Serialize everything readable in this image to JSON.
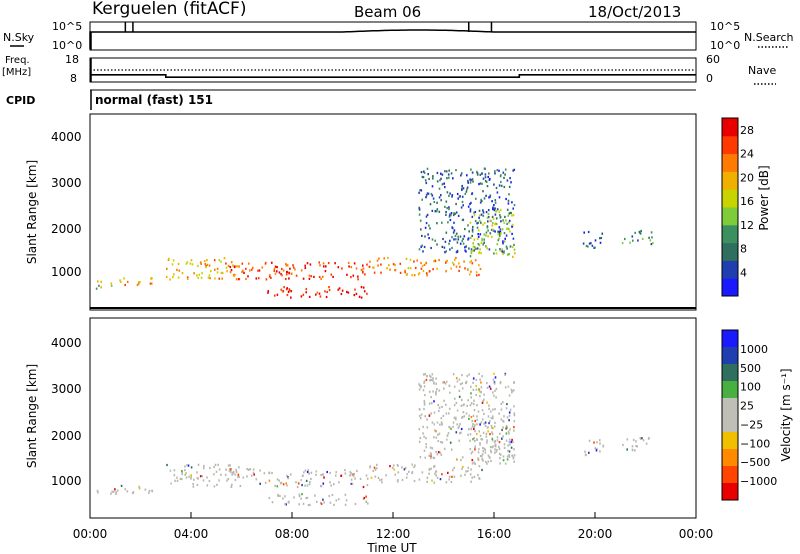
{
  "header": {
    "station": "Kerguelen (fitACF)",
    "beam": "Beam 06",
    "date": "18/Oct/2013"
  },
  "top_panels": {
    "nsky_label": "N.Sky",
    "nsky_ticks": [
      "10^5",
      "10^0"
    ],
    "nsearch_label": "N.Search",
    "nsearch_ticks": [
      "10^5",
      "10^0"
    ],
    "freq_label": "Freq.",
    "freq_unit": "[MHz]",
    "freq_ticks": [
      "18",
      "8"
    ],
    "nave_label": "Nave",
    "nave_ticks": [
      "60",
      "0"
    ],
    "cpid_label": "CPID",
    "cpid_value": "normal (fast) 151"
  },
  "colors": {
    "power_scale": [
      "#1a1aff",
      "#1f3fb0",
      "#2e6f5e",
      "#3c9060",
      "#7ecc3a",
      "#c8d400",
      "#f0b000",
      "#ff7a00",
      "#ff3a00",
      "#e80000"
    ],
    "velocity_scale": [
      "#1a1aff",
      "#1f3fb0",
      "#2e6f5e",
      "#48b040",
      "#bfbfb8",
      "#bfbfb8",
      "#f0c000",
      "#ff8a00",
      "#ff4500",
      "#e80000"
    ],
    "ground_scatter": "#b8b8b0"
  },
  "chart_data": [
    {
      "type": "heatmap",
      "title": "Power",
      "xlabel": "Time UT",
      "ylabel": "Slant Range [km]",
      "xlim_hours": [
        0,
        24
      ],
      "ylim_km": [
        200,
        4600
      ],
      "y_ticks": [
        "1000",
        "2000",
        "3000",
        "4000"
      ],
      "colorbar": {
        "label": "Power [dB]",
        "ticks": [
          "4",
          "8",
          "12",
          "16",
          "20",
          "24",
          "28"
        ],
        "range": [
          0,
          30
        ]
      },
      "echo_regions": [
        {
          "t0": 0.2,
          "t1": 1.0,
          "r0": 700,
          "r1": 900,
          "level": 16
        },
        {
          "t0": 1.0,
          "t1": 2.5,
          "r0": 750,
          "r1": 950,
          "level": 20
        },
        {
          "t0": 3.0,
          "t1": 6.0,
          "r0": 900,
          "r1": 1400,
          "level": 20
        },
        {
          "t0": 5.5,
          "t1": 11.0,
          "r0": 900,
          "r1": 1300,
          "level": 26
        },
        {
          "t0": 7.0,
          "t1": 11.0,
          "r0": 500,
          "r1": 750,
          "level": 28
        },
        {
          "t0": 11.0,
          "t1": 15.5,
          "r0": 1000,
          "r1": 1400,
          "level": 22
        },
        {
          "t0": 13.0,
          "t1": 16.8,
          "r0": 1500,
          "r1": 3400,
          "level": 6
        },
        {
          "t0": 15.0,
          "t1": 16.8,
          "r0": 1400,
          "r1": 2500,
          "level": 14
        },
        {
          "t0": 19.5,
          "t1": 20.3,
          "r0": 1600,
          "r1": 2000,
          "level": 6
        },
        {
          "t0": 21.0,
          "t1": 22.3,
          "r0": 1700,
          "r1": 2000,
          "level": 10
        }
      ]
    },
    {
      "type": "heatmap",
      "title": "Velocity",
      "xlabel": "Time UT",
      "ylabel": "Slant Range [km]",
      "xlim_hours": [
        0,
        24
      ],
      "ylim_km": [
        200,
        4600
      ],
      "x_ticks": [
        "00:00",
        "04:00",
        "08:00",
        "12:00",
        "16:00",
        "20:00",
        "00:00"
      ],
      "y_ticks": [
        "1000",
        "2000",
        "3000",
        "4000"
      ],
      "colorbar": {
        "label": "Velocity [m s⁻¹]",
        "ticks": [
          "1000",
          "500",
          "100",
          "25",
          "−25",
          "−100",
          "−500",
          "−1000"
        ]
      },
      "dominant": "ground scatter (grey)"
    }
  ],
  "time_series": {
    "frequency_mhz": [
      [
        0,
        11
      ],
      [
        3,
        11
      ],
      [
        3,
        10
      ],
      [
        17,
        10
      ],
      [
        17,
        11
      ],
      [
        24,
        11
      ]
    ],
    "nave": [
      [
        0,
        30
      ],
      [
        24,
        30
      ]
    ]
  }
}
